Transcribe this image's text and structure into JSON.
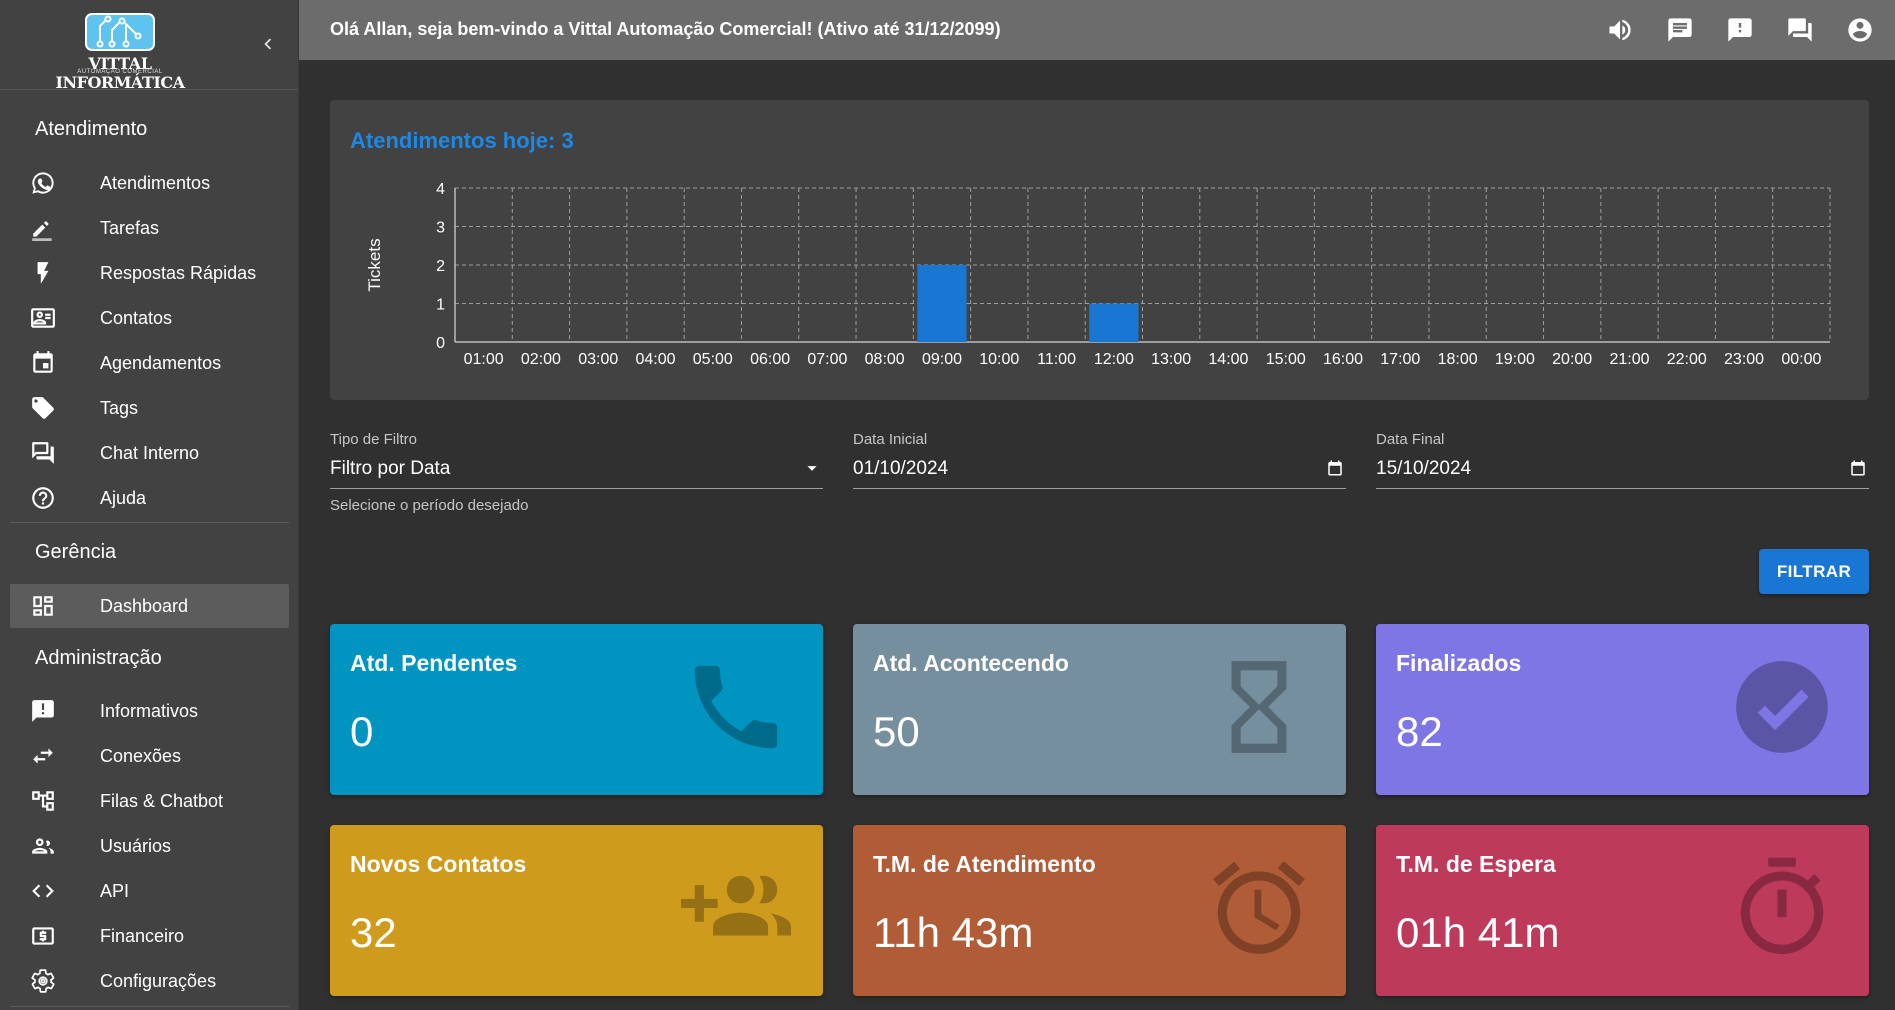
{
  "brand": {
    "logo_text": "VITTAL INFORMÁTICA",
    "logo_subtext": "AUTOMAÇÃO COMERCIAL"
  },
  "sidebar": {
    "sections": [
      {
        "title": "Atendimento"
      },
      {
        "title": "Gerência"
      },
      {
        "title": "Administração"
      }
    ],
    "items": [
      {
        "label": "Atendimentos",
        "icon": "whatsapp-icon"
      },
      {
        "label": "Tarefas",
        "icon": "pencil-icon"
      },
      {
        "label": "Respostas Rápidas",
        "icon": "bolt-icon"
      },
      {
        "label": "Contatos",
        "icon": "contact-card-icon"
      },
      {
        "label": "Agendamentos",
        "icon": "calendar-icon"
      },
      {
        "label": "Tags",
        "icon": "tag-icon"
      },
      {
        "label": "Chat Interno",
        "icon": "forum-icon"
      },
      {
        "label": "Ajuda",
        "icon": "help-icon"
      },
      {
        "label": "Dashboard",
        "icon": "dashboard-icon",
        "active": true
      },
      {
        "label": "Informativos",
        "icon": "announcement-icon"
      },
      {
        "label": "Conexões",
        "icon": "swap-icon"
      },
      {
        "label": "Filas & Chatbot",
        "icon": "account-tree-icon"
      },
      {
        "label": "Usuários",
        "icon": "people-icon"
      },
      {
        "label": "API",
        "icon": "code-icon"
      },
      {
        "label": "Financeiro",
        "icon": "money-icon"
      },
      {
        "label": "Configurações",
        "icon": "gear-icon"
      }
    ]
  },
  "header": {
    "welcome": "Olá Allan, seja bem-vindo a Vittal Automação Comercial! (Ativo até 31/12/2099)",
    "icons": [
      "volume-icon",
      "message-icon",
      "feedback-icon",
      "chat-icon",
      "account-circle-icon"
    ]
  },
  "chart_card": {
    "title": "Atendimentos hoje: 3"
  },
  "chart_data": {
    "type": "bar",
    "title": "Atendimentos hoje: 3",
    "xlabel": "",
    "ylabel": "Tickets",
    "categories": [
      "01:00",
      "02:00",
      "03:00",
      "04:00",
      "05:00",
      "06:00",
      "07:00",
      "08:00",
      "09:00",
      "10:00",
      "11:00",
      "12:00",
      "13:00",
      "14:00",
      "15:00",
      "16:00",
      "17:00",
      "18:00",
      "19:00",
      "20:00",
      "21:00",
      "22:00",
      "23:00",
      "00:00"
    ],
    "values": [
      0,
      0,
      0,
      0,
      0,
      0,
      0,
      0,
      2,
      0,
      0,
      1,
      0,
      0,
      0,
      0,
      0,
      0,
      0,
      0,
      0,
      0,
      0,
      0
    ],
    "ylim": [
      0,
      4
    ],
    "yticks": [
      "0",
      "1",
      "2",
      "3",
      "4"
    ],
    "grid": true,
    "bar_color": "#1976d2"
  },
  "filters": {
    "tipo": {
      "label": "Tipo de Filtro",
      "value": "Filtro por Data",
      "helper": "Selecione o período desejado"
    },
    "data_inicial": {
      "label": "Data Inicial",
      "value": "01/10/2024"
    },
    "data_final": {
      "label": "Data Final",
      "value": "15/10/2024"
    },
    "button": "FILTRAR"
  },
  "stats": [
    {
      "title": "Atd. Pendentes",
      "value": "0",
      "color": "#0094c1",
      "icon": "phone-icon"
    },
    {
      "title": "Atd. Acontecendo",
      "value": "50",
      "color": "#768f9f",
      "icon": "hourglass-icon"
    },
    {
      "title": "Finalizados",
      "value": "82",
      "color": "#7f76e6",
      "icon": "check-circle-icon"
    },
    {
      "title": "Novos Contatos",
      "value": "32",
      "color": "#cf9b1d",
      "icon": "group-add-icon"
    },
    {
      "title": "T.M. de Atendimento",
      "value": "11h 43m",
      "color": "#b05c37",
      "icon": "alarm-icon"
    },
    {
      "title": "T.M. de Espera",
      "value": "01h 41m",
      "color": "#be3a5b",
      "icon": "timer-icon"
    }
  ]
}
